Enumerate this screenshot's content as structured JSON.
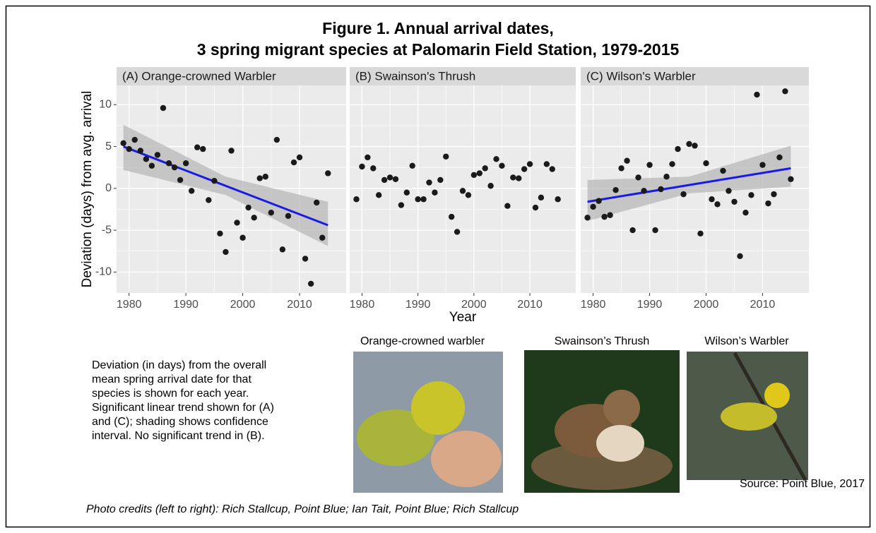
{
  "figure": {
    "title_lines": [
      "Figure 1. Annual arrival dates,",
      "3 spring migrant species at Palomarin Field Station, 1979-2015"
    ],
    "y_label": "Deviation (days) from avg. arrival",
    "x_label": "Year"
  },
  "chart_data": [
    {
      "type": "scatter",
      "title": "(A) Orange-crowned Warbler",
      "color": "#1a1a1a",
      "x": [
        1979,
        1980,
        1981,
        1982,
        1983,
        1984,
        1985,
        1986,
        1987,
        1988,
        1989,
        1990,
        1991,
        1992,
        1993,
        1994,
        1995,
        1996,
        1997,
        1998,
        1999,
        2000,
        2001,
        2002,
        2003,
        2004,
        2005,
        2006,
        2007,
        2008,
        2009,
        2010,
        2011,
        2012,
        2013,
        2014,
        2015
      ],
      "values": [
        5.4,
        4.7,
        5.8,
        4.5,
        3.5,
        2.7,
        4.0,
        9.6,
        3.0,
        2.5,
        1.0,
        3.0,
        -0.3,
        4.9,
        4.7,
        -1.4,
        0.9,
        -5.4,
        -7.6,
        4.5,
        -4.1,
        -5.9,
        -2.3,
        -3.5,
        1.2,
        1.4,
        -2.9,
        5.8,
        -7.3,
        -3.3,
        3.1,
        3.7,
        -8.4,
        -11.4,
        -1.7,
        -5.9,
        1.8
      ],
      "trend": {
        "color": "#1a1ae6",
        "x": [
          1979,
          2015
        ],
        "values": [
          5.0,
          -4.4
        ]
      },
      "ci": {
        "color": "#b8b8b8",
        "x": [
          1979,
          1997,
          2015
        ],
        "lower": [
          2.2,
          -0.8,
          -6.9
        ],
        "upper": [
          7.6,
          1.4,
          -1.6
        ]
      },
      "xlim": [
        1977.8,
        2018.2
      ],
      "xticks": [
        1980,
        1990,
        2000,
        2010
      ],
      "ylim": [
        -12.5,
        12.3
      ],
      "yticks": [
        -10,
        -5,
        0,
        5,
        10
      ],
      "grid": true
    },
    {
      "type": "scatter",
      "title": "(B) Swainson's Thrush",
      "color": "#1a1a1a",
      "x": [
        1979,
        1980,
        1981,
        1982,
        1983,
        1984,
        1985,
        1986,
        1987,
        1988,
        1989,
        1990,
        1991,
        1992,
        1993,
        1994,
        1995,
        1996,
        1997,
        1998,
        1999,
        2000,
        2001,
        2002,
        2003,
        2004,
        2005,
        2006,
        2007,
        2008,
        2009,
        2010,
        2011,
        2012,
        2013,
        2014,
        2015
      ],
      "values": [
        -1.3,
        2.6,
        3.7,
        2.4,
        -0.8,
        1.0,
        1.3,
        1.1,
        -2.0,
        -0.5,
        2.7,
        -1.3,
        -1.3,
        0.7,
        -0.5,
        1.0,
        3.8,
        -3.4,
        -5.2,
        -0.3,
        -0.8,
        1.6,
        1.8,
        2.4,
        0.3,
        3.5,
        2.7,
        -2.1,
        1.3,
        1.2,
        2.3,
        2.9,
        -2.3,
        -1.1,
        2.9,
        2.3,
        -1.3
      ],
      "xlim": [
        1977.8,
        2018.2
      ],
      "xticks": [
        1980,
        1990,
        2000,
        2010
      ],
      "ylim": [
        -12.5,
        12.3
      ],
      "yticks": [
        -10,
        -5,
        0,
        5,
        10
      ],
      "grid": true
    },
    {
      "type": "scatter",
      "title": "(C) Wilson's Warbler",
      "color": "#1a1a1a",
      "x": [
        1979,
        1980,
        1981,
        1982,
        1983,
        1984,
        1985,
        1986,
        1987,
        1988,
        1989,
        1990,
        1991,
        1992,
        1993,
        1994,
        1995,
        1996,
        1997,
        1998,
        1999,
        2000,
        2001,
        2002,
        2003,
        2004,
        2005,
        2006,
        2007,
        2008,
        2009,
        2010,
        2011,
        2012,
        2013,
        2014,
        2015
      ],
      "values": [
        -3.5,
        -2.2,
        -1.5,
        -3.4,
        -3.2,
        -0.2,
        2.4,
        3.3,
        -5.0,
        1.3,
        -0.3,
        2.8,
        -5.0,
        -0.1,
        1.4,
        2.9,
        4.7,
        -0.7,
        5.3,
        5.1,
        -5.4,
        3.0,
        -1.3,
        -1.9,
        2.1,
        -0.3,
        -1.6,
        -8.1,
        -2.9,
        -0.8,
        11.2,
        2.8,
        -1.8,
        -0.7,
        3.7,
        11.6,
        1.1
      ],
      "trend": {
        "color": "#1a1ae6",
        "x": [
          1979,
          2015
        ],
        "values": [
          -1.6,
          2.4
        ]
      },
      "ci": {
        "color": "#b8b8b8",
        "x": [
          1979,
          1997,
          2015
        ],
        "lower": [
          -3.9,
          -0.6,
          0.2
        ],
        "upper": [
          1.0,
          1.4,
          5.1
        ]
      },
      "xlim": [
        1977.8,
        2018.2
      ],
      "xticks": [
        1980,
        1990,
        2000,
        2010
      ],
      "ylim": [
        -12.5,
        12.3
      ],
      "yticks": [
        -10,
        -5,
        0,
        5,
        10
      ],
      "grid": true
    }
  ],
  "caption_lines": [
    "Deviation (in days) from the overall",
    "mean spring arrival date for that",
    "species is shown for each year.",
    "Significant linear trend shown for (A)",
    "and (C); shading shows confidence",
    "interval. No significant trend in (B)."
  ],
  "photos": [
    {
      "label": "Orange-crowned warbler"
    },
    {
      "label": "Swainson’s Thrush"
    },
    {
      "label": "Wilson’s Warbler"
    }
  ],
  "source": "Source: Point Blue, 2017",
  "credits": "Photo credits (left to right): Rich Stallcup, Point Blue; Ian Tait, Point Blue; Rich Stallcup"
}
